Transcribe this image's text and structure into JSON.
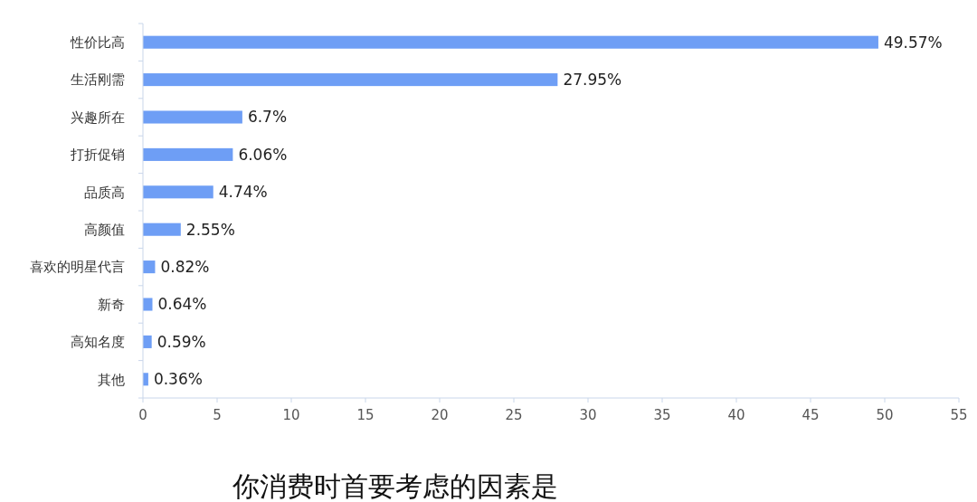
{
  "chart_data": {
    "type": "bar",
    "orientation": "horizontal",
    "title": "你消费时首要考虑的因素是",
    "categories": [
      "性价比高",
      "生活刚需",
      "兴趣所在",
      "打折促销",
      "品质高",
      "高颜值",
      "喜欢的明星代言",
      "新奇",
      "高知名度",
      "其他"
    ],
    "values": [
      49.57,
      27.95,
      6.7,
      6.06,
      4.74,
      2.55,
      0.82,
      0.64,
      0.59,
      0.36
    ],
    "value_labels": [
      "49.57%",
      "27.95%",
      "6.7%",
      "6.06%",
      "4.74%",
      "2.55%",
      "0.82%",
      "0.64%",
      "0.59%",
      "0.36%"
    ],
    "color": "#6e9ef5",
    "xlim": [
      0,
      55
    ],
    "xticks": [
      0,
      5,
      10,
      15,
      20,
      25,
      30,
      35,
      40,
      45,
      50,
      55
    ],
    "grid": false
  }
}
